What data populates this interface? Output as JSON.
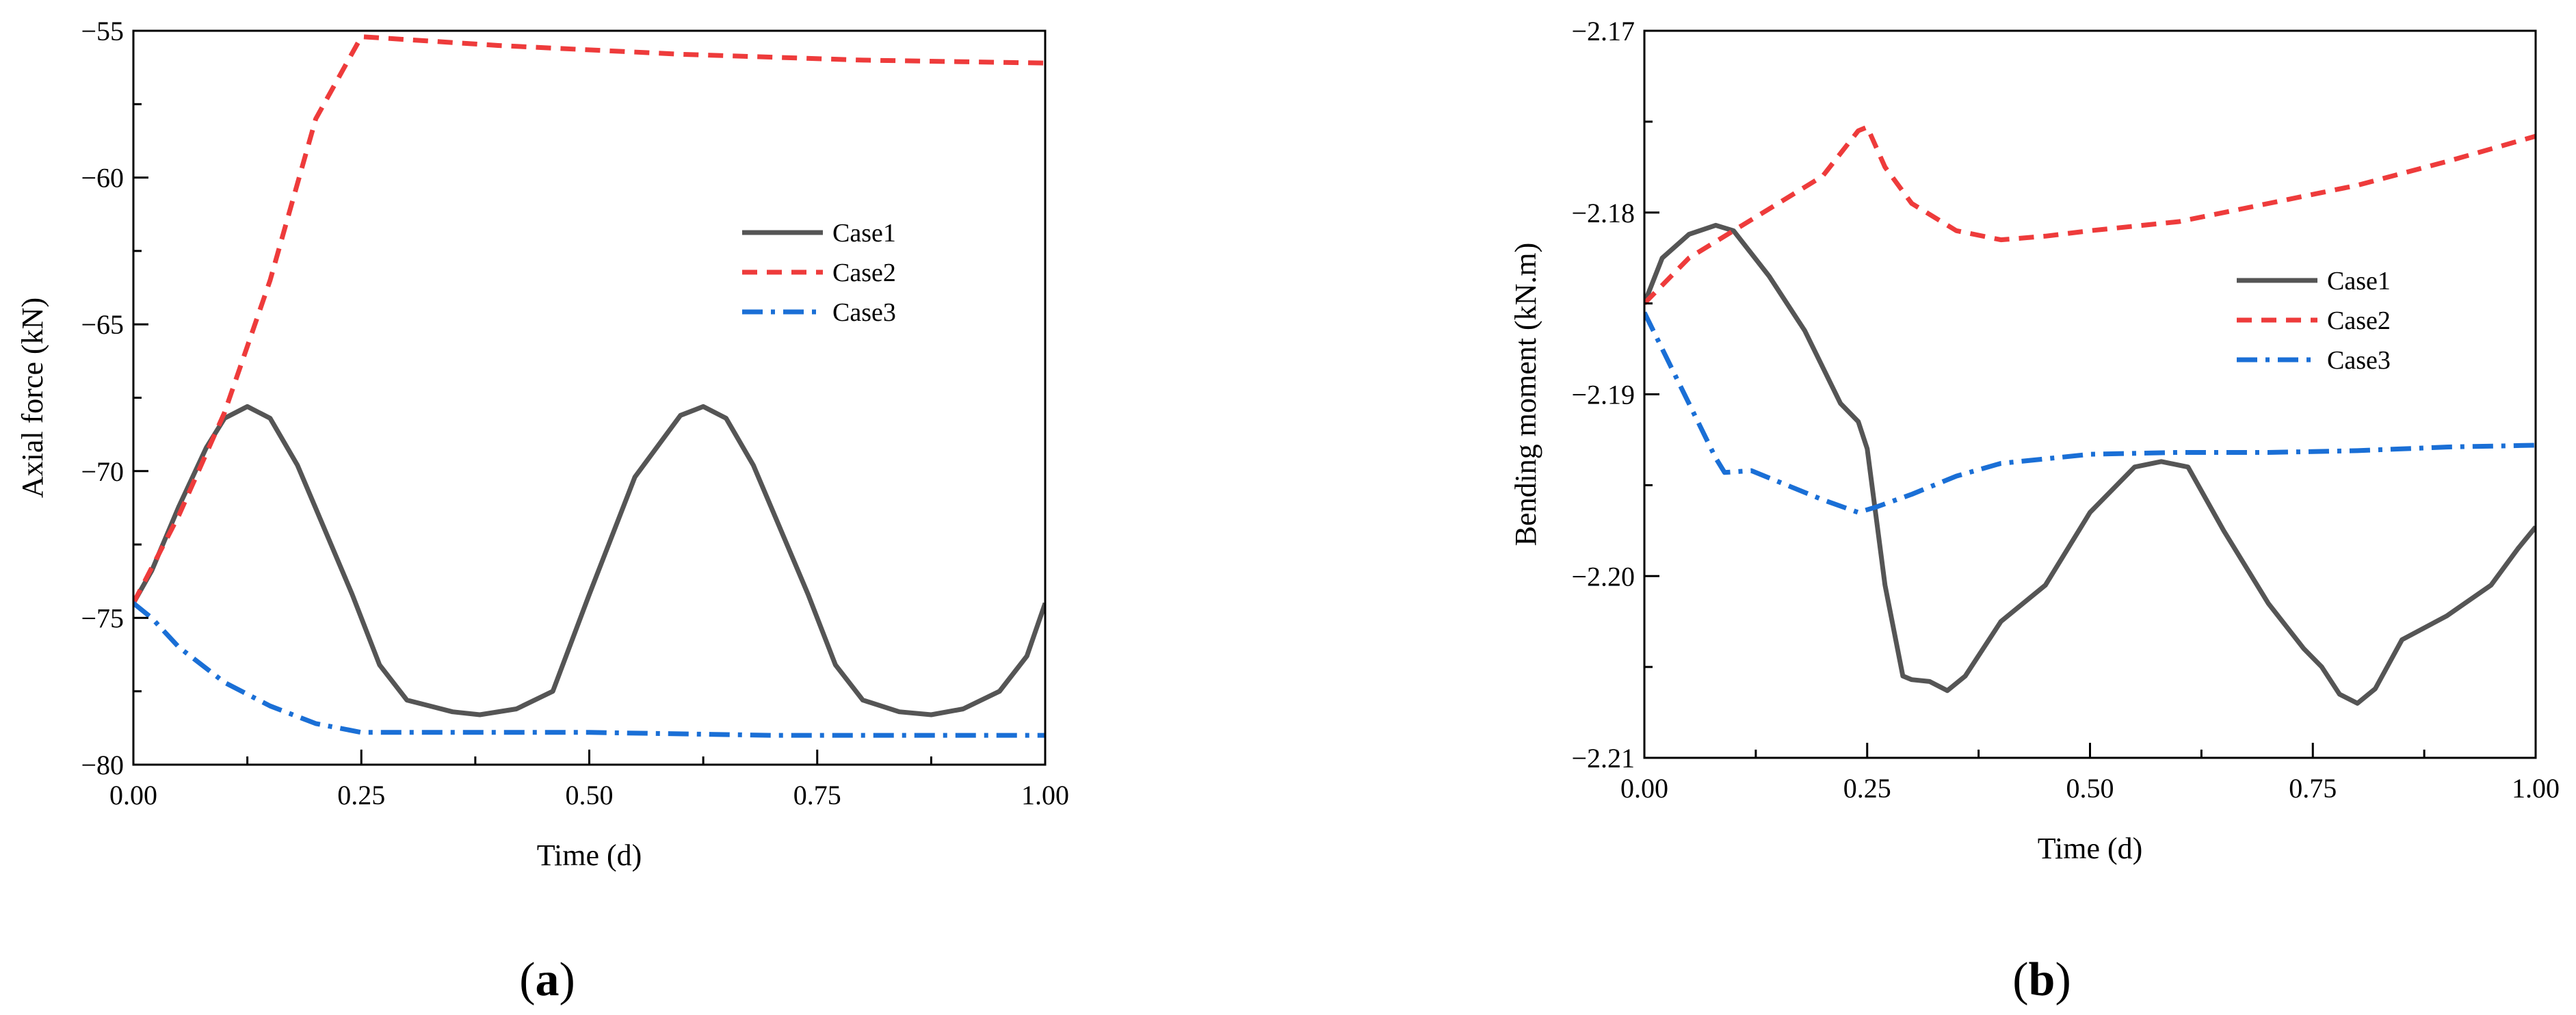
{
  "chart_data": [
    {
      "type": "line",
      "panel_label": "a",
      "title": "",
      "xlabel": "Time (d)",
      "ylabel": "Axial force (kN)",
      "xlim": [
        0,
        1
      ],
      "ylim": [
        -80,
        -55
      ],
      "xticks": [
        0,
        0.25,
        0.5,
        0.75,
        1.0
      ],
      "xtick_labels": [
        "0.00",
        "0.25",
        "0.50",
        "0.75",
        "1.00"
      ],
      "yticks": [
        -80,
        -75,
        -70,
        -65,
        -60,
        -55
      ],
      "ytick_labels": [
        "−80",
        "−75",
        "−70",
        "−65",
        "−60",
        "−55"
      ],
      "legend_position": "center-right",
      "series": [
        {
          "name": "Case1",
          "color": "#555555",
          "style": "solid",
          "x": [
            0,
            0.02,
            0.05,
            0.08,
            0.1,
            0.125,
            0.15,
            0.18,
            0.21,
            0.24,
            0.27,
            0.3,
            0.35,
            0.38,
            0.42,
            0.46,
            0.5,
            0.55,
            0.6,
            0.625,
            0.65,
            0.68,
            0.71,
            0.74,
            0.77,
            0.8,
            0.84,
            0.875,
            0.91,
            0.95,
            0.98,
            1.0
          ],
          "y": [
            -74.5,
            -73.4,
            -71.2,
            -69.2,
            -68.2,
            -67.8,
            -68.2,
            -69.8,
            -72.0,
            -74.2,
            -76.6,
            -77.8,
            -78.2,
            -78.3,
            -78.1,
            -77.5,
            -74.2,
            -70.2,
            -68.1,
            -67.8,
            -68.2,
            -69.8,
            -72.0,
            -74.2,
            -76.6,
            -77.8,
            -78.2,
            -78.3,
            -78.1,
            -77.5,
            -76.3,
            -74.5
          ]
        },
        {
          "name": "Case2",
          "color": "#ee3b3b",
          "style": "dashed",
          "x": [
            0,
            0.05,
            0.1,
            0.15,
            0.2,
            0.25,
            0.4,
            0.6,
            0.8,
            1.0
          ],
          "y": [
            -74.5,
            -71.5,
            -68.0,
            -63.5,
            -58.0,
            -55.2,
            -55.5,
            -55.8,
            -56.0,
            -56.1
          ]
        },
        {
          "name": "Case3",
          "color": "#1a6fd6",
          "style": "dashdot",
          "x": [
            0,
            0.02,
            0.05,
            0.1,
            0.15,
            0.2,
            0.25,
            0.35,
            0.5,
            0.7,
            0.9,
            1.0
          ],
          "y": [
            -74.5,
            -75.0,
            -76.0,
            -77.2,
            -78.0,
            -78.6,
            -78.9,
            -78.9,
            -78.9,
            -79.0,
            -79.0,
            -79.0
          ]
        }
      ]
    },
    {
      "type": "line",
      "panel_label": "b",
      "title": "",
      "xlabel": "Time (d)",
      "ylabel": "Bending moment (kN.m)",
      "xlim": [
        0,
        1
      ],
      "ylim": [
        -2.21,
        -2.17
      ],
      "xticks": [
        0,
        0.25,
        0.5,
        0.75,
        1.0
      ],
      "xtick_labels": [
        "0.00",
        "0.25",
        "0.50",
        "0.75",
        "1.00"
      ],
      "yticks": [
        -2.21,
        -2.2,
        -2.19,
        -2.18,
        -2.17
      ],
      "ytick_labels": [
        "−2.21",
        "−2.20",
        "−2.19",
        "−2.18",
        "−2.17"
      ],
      "legend_position": "center-right",
      "series": [
        {
          "name": "Case1",
          "color": "#555555",
          "style": "solid",
          "x": [
            0,
            0.02,
            0.05,
            0.08,
            0.1,
            0.14,
            0.18,
            0.22,
            0.24,
            0.25,
            0.27,
            0.29,
            0.3,
            0.32,
            0.34,
            0.36,
            0.4,
            0.45,
            0.5,
            0.55,
            0.58,
            0.61,
            0.65,
            0.7,
            0.74,
            0.76,
            0.78,
            0.8,
            0.82,
            0.85,
            0.9,
            0.95,
            0.98,
            1.0
          ],
          "y": [
            -2.185,
            -2.1825,
            -2.1812,
            -2.1807,
            -2.181,
            -2.1835,
            -2.1865,
            -2.1905,
            -2.1915,
            -2.193,
            -2.2005,
            -2.2055,
            -2.2057,
            -2.2058,
            -2.2063,
            -2.2055,
            -2.2025,
            -2.2005,
            -2.1965,
            -2.194,
            -2.1937,
            -2.194,
            -2.1975,
            -2.2015,
            -2.204,
            -2.205,
            -2.2065,
            -2.207,
            -2.2062,
            -2.2035,
            -2.2022,
            -2.2005,
            -2.1985,
            -2.1973
          ]
        },
        {
          "name": "Case2",
          "color": "#ee3b3b",
          "style": "dashed",
          "x": [
            0,
            0.05,
            0.1,
            0.15,
            0.2,
            0.24,
            0.25,
            0.27,
            0.3,
            0.35,
            0.4,
            0.45,
            0.5,
            0.6,
            0.7,
            0.8,
            0.9,
            1.0
          ],
          "y": [
            -2.185,
            -2.1825,
            -2.181,
            -2.1795,
            -2.178,
            -2.1755,
            -2.1753,
            -2.1775,
            -2.1795,
            -2.181,
            -2.1815,
            -2.1813,
            -2.181,
            -2.1805,
            -2.1795,
            -2.1785,
            -2.1772,
            -2.1758
          ]
        },
        {
          "name": "Case3",
          "color": "#1a6fd6",
          "style": "dashdot",
          "x": [
            0,
            0.02,
            0.04,
            0.06,
            0.08,
            0.09,
            0.12,
            0.16,
            0.2,
            0.24,
            0.26,
            0.3,
            0.35,
            0.4,
            0.5,
            0.6,
            0.7,
            0.8,
            0.9,
            1.0
          ],
          "y": [
            -2.1855,
            -2.1875,
            -2.1895,
            -2.1915,
            -2.1935,
            -2.1943,
            -2.1942,
            -2.195,
            -2.1958,
            -2.1965,
            -2.1962,
            -2.1955,
            -2.1945,
            -2.1938,
            -2.1933,
            -2.1932,
            -2.1932,
            -2.1931,
            -2.1929,
            -2.1928
          ]
        }
      ]
    }
  ]
}
